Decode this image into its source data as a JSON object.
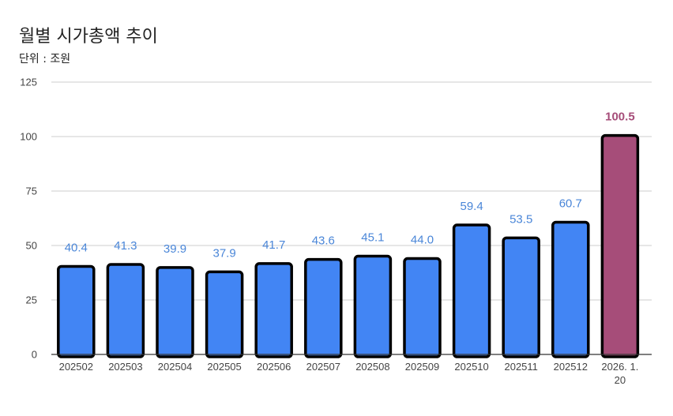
{
  "chart_data": {
    "type": "bar",
    "title": "월별 시가총액 추이",
    "subtitle": "단위 : 조원",
    "xlabel": "",
    "ylabel": "",
    "categories": [
      "202502",
      "202503",
      "202504",
      "202505",
      "202506",
      "202507",
      "202508",
      "202509",
      "202510",
      "202511",
      "202512",
      "2026. 1. 20"
    ],
    "values": [
      40.4,
      41.3,
      39.9,
      37.9,
      41.7,
      43.6,
      45.1,
      44.0,
      59.4,
      53.5,
      60.7,
      100.5
    ],
    "value_labels": [
      "40.4",
      "41.3",
      "39.9",
      "37.9",
      "41.7",
      "43.6",
      "45.1",
      "44.0",
      "59.4",
      "53.5",
      "60.7",
      "100.5"
    ],
    "highlight_index": 11,
    "ylim": [
      0,
      125
    ],
    "yticks": [
      0,
      25,
      50,
      75,
      100,
      125
    ],
    "grid": true,
    "legend": "none",
    "colors": {
      "bar": "#4285f4",
      "highlight_bar": "#a64d79",
      "bar_border": "#000000",
      "label": "#4a86d8",
      "highlight_label": "#a64d79",
      "grid": "#cccccc"
    }
  }
}
